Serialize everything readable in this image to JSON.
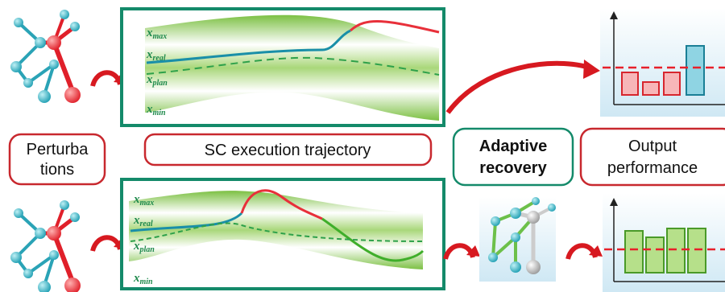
{
  "top_trajectory": {
    "labels": [
      {
        "symbol": "x",
        "subscript": "max"
      },
      {
        "symbol": "x",
        "subscript": "real"
      },
      {
        "symbol": "x",
        "subscript": "plan"
      },
      {
        "symbol": "x",
        "subscript": "min"
      }
    ]
  },
  "bottom_trajectory": {
    "labels": [
      {
        "symbol": "x",
        "subscript": "max"
      },
      {
        "symbol": "x",
        "subscript": "real"
      },
      {
        "symbol": "x",
        "subscript": "plan"
      },
      {
        "symbol": "x",
        "subscript": "min"
      }
    ]
  },
  "boxes": {
    "perturbations": [
      "Perturba",
      "tions"
    ],
    "trajectory": "SC execution trajectory",
    "recovery": [
      "Adaptive",
      "recovery"
    ],
    "output": [
      "Output",
      "performance"
    ]
  }
}
